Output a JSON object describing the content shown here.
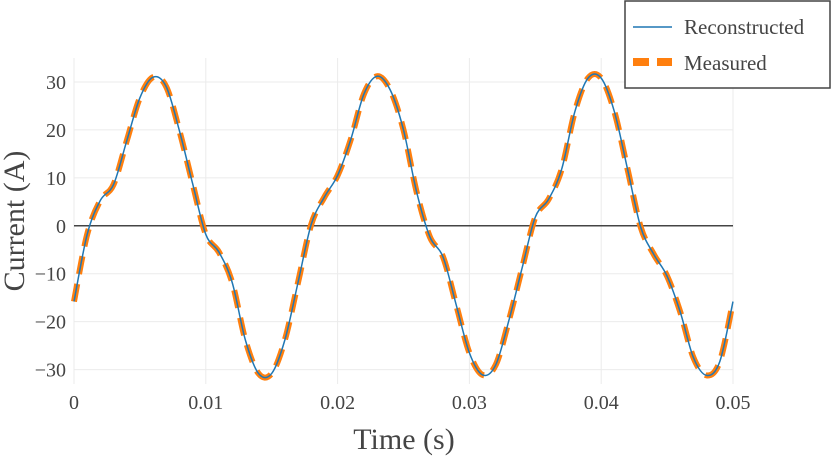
{
  "chart_data": {
    "type": "line",
    "xlabel": "Time (s)",
    "ylabel": "Current (A)",
    "xlim": [
      0,
      0.05
    ],
    "ylim": [
      -33,
      35
    ],
    "x_ticks": [
      0,
      0.01,
      0.02,
      0.03,
      0.04,
      0.05
    ],
    "x_tick_labels": [
      "0",
      "0.01",
      "0.02",
      "0.03",
      "0.04",
      "0.05"
    ],
    "y_ticks": [
      30,
      20,
      10,
      0,
      -10,
      -20,
      -30
    ],
    "y_tick_labels": [
      "30",
      "20",
      "10",
      "0",
      "−10",
      "−20",
      "−30"
    ],
    "grid": true,
    "zero_line": true,
    "legend_position": "top-right",
    "series": [
      {
        "name": "Reconstructed",
        "style": "solid",
        "color": "#1f77b4",
        "x": [
          0,
          0.001,
          0.002,
          0.003,
          0.004,
          0.005,
          0.006,
          0.007,
          0.008,
          0.009,
          0.01,
          0.011,
          0.012,
          0.013,
          0.014,
          0.015,
          0.016,
          0.017,
          0.018,
          0.019,
          0.02,
          0.021,
          0.022,
          0.023,
          0.024,
          0.025,
          0.026,
          0.027,
          0.028,
          0.029,
          0.03,
          0.031,
          0.032,
          0.033,
          0.034,
          0.035,
          0.036,
          0.037,
          0.038,
          0.039,
          0.04,
          0.041,
          0.042,
          0.043,
          0.044,
          0.045,
          0.046,
          0.047,
          0.048,
          0.049,
          0.05
        ],
        "values": [
          -15.8,
          -1.8,
          5.3,
          8.6,
          17.7,
          26.7,
          31.0,
          29.0,
          19.8,
          8.8,
          -1.8,
          -5.5,
          -11.8,
          -23.8,
          -30.8,
          -30.8,
          -23.8,
          -11.8,
          0.3,
          6.0,
          10.5,
          18.0,
          27.5,
          31.2,
          28.3,
          20.0,
          7.0,
          -2.3,
          -6.5,
          -16.5,
          -26.5,
          -31.1,
          -29.0,
          -19.7,
          -8.8,
          1.8,
          5.5,
          11.8,
          23.8,
          30.8,
          30.8,
          23.8,
          11.8,
          -0.3,
          -6.0,
          -10.5,
          -18.0,
          -27.5,
          -31.2,
          -28.3,
          -15.8
        ]
      },
      {
        "name": "Measured",
        "style": "dashed",
        "color": "#ff7f0e",
        "x": [
          0,
          0.001,
          0.002,
          0.003,
          0.004,
          0.005,
          0.006,
          0.007,
          0.008,
          0.009,
          0.01,
          0.011,
          0.012,
          0.013,
          0.014,
          0.015,
          0.016,
          0.017,
          0.018,
          0.019,
          0.02,
          0.021,
          0.022,
          0.023,
          0.024,
          0.025,
          0.026,
          0.027,
          0.028,
          0.029,
          0.03,
          0.031,
          0.032,
          0.033,
          0.034,
          0.035,
          0.036,
          0.037,
          0.038,
          0.039,
          0.04,
          0.041,
          0.042,
          0.043,
          0.044,
          0.045,
          0.046,
          0.047,
          0.048,
          0.049,
          0.05
        ],
        "values": [
          -15.8,
          -1.8,
          5.3,
          8.6,
          17.7,
          26.7,
          31.0,
          29.0,
          19.8,
          8.8,
          -1.8,
          -5.5,
          -11.8,
          -23.8,
          -30.8,
          -30.8,
          -23.8,
          -11.8,
          0.3,
          6.0,
          10.5,
          18.0,
          27.5,
          31.2,
          28.3,
          20.0,
          7.0,
          -2.3,
          -6.5,
          -16.5,
          -26.5,
          -31.1,
          -29.0,
          -19.7,
          -8.8,
          1.8,
          5.5,
          11.8,
          23.8,
          30.8,
          30.8,
          23.8,
          11.8,
          -0.3,
          -6.0,
          -10.5,
          -18.0,
          -27.5,
          -31.2,
          -28.3,
          -15.8
        ]
      }
    ]
  }
}
